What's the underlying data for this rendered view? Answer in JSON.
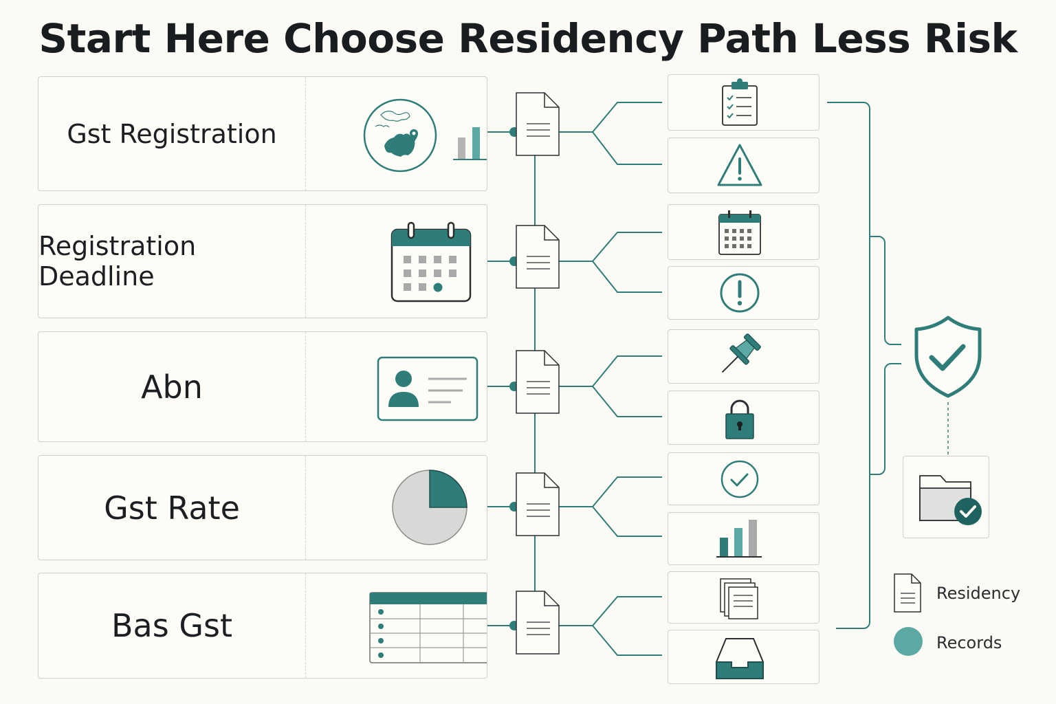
{
  "title": "Start Here Choose Residency Path Less Risk",
  "rows": [
    {
      "label": "Gst Registration",
      "illustration": "map-and-bar-chart-icon",
      "icons": [
        "clipboard-checklist-icon",
        "warning-triangle-icon"
      ]
    },
    {
      "label": "Registration Deadline",
      "illustration": "calendar-icon",
      "icons": [
        "calendar-grid-icon",
        "exclamation-circle-icon"
      ]
    },
    {
      "label": "Abn",
      "illustration": "id-card-icon",
      "icons": [
        "pushpin-icon",
        "padlock-icon"
      ]
    },
    {
      "label": "Gst Rate",
      "illustration": "pie-chart-icon",
      "icons": [
        "check-circle-icon",
        "bar-chart-icon"
      ]
    },
    {
      "label": "Bas Gst",
      "illustration": "table-icon",
      "icons": [
        "stacked-documents-icon",
        "inbox-tray-icon"
      ]
    }
  ],
  "outcome": {
    "top": "shield-check-icon",
    "bottom": "folder-check-icon"
  },
  "legend": [
    {
      "icon": "document-icon",
      "label": "Residency"
    },
    {
      "icon": "teal-dot-icon",
      "label": "Records"
    }
  ],
  "colors": {
    "teal": "#2e7d79",
    "teal_dark": "#1f6360",
    "teal_light": "#5aa9a3",
    "gray": "#a9a9a9",
    "border": "#cfcfcb",
    "background": "#fbfaf4"
  }
}
